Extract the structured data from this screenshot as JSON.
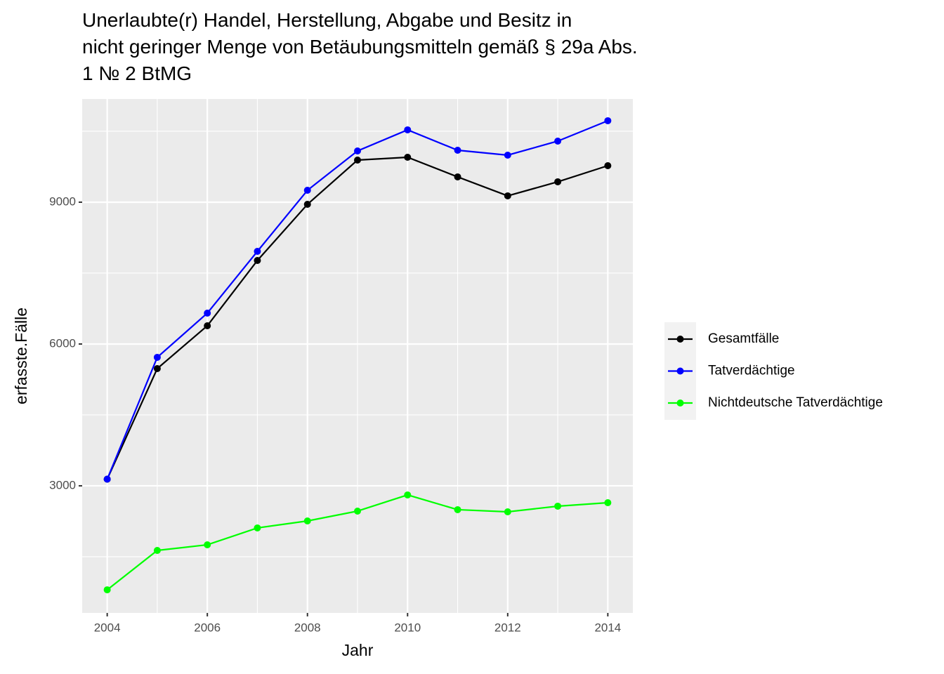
{
  "chart_data": {
    "type": "line",
    "title": [
      "Unerlaubte(r) Handel, Herstellung, Abgabe und Besitz in",
      "nicht geringer Menge von Betäubungsmitteln gemäß § 29a Abs.",
      "1 № 2 BtMG"
    ],
    "x_label": "Jahr",
    "y_label": "erfasste.Fälle",
    "x": [
      2004,
      2005,
      2006,
      2007,
      2008,
      2009,
      2010,
      2011,
      2012,
      2013,
      2014
    ],
    "series": [
      {
        "name": "Gesamtfälle",
        "color": "#000000",
        "values": [
          3140,
          5480,
          6386,
          7767,
          8955,
          9891,
          9950,
          9535,
          9134,
          9431,
          9772
        ]
      },
      {
        "name": "Tatverdächtige",
        "color": "#0000ff",
        "values": [
          3140,
          5718,
          6653,
          7960,
          9252,
          10084,
          10530,
          10099,
          9995,
          10292,
          10723
        ]
      },
      {
        "name": "Nichtdeutsche Tatverdächtige",
        "color": "#00ff00",
        "values": [
          800,
          1633,
          1752,
          2109,
          2257,
          2465,
          2807,
          2495,
          2450,
          2569,
          2643
        ]
      }
    ],
    "xlim": [
      2003.5,
      2014.5
    ],
    "xticks": [
      2004,
      2006,
      2008,
      2010,
      2012,
      2014
    ],
    "ylim": [
      311,
      11183
    ],
    "yticks": [
      3000,
      6000,
      9000
    ],
    "grid": true
  }
}
